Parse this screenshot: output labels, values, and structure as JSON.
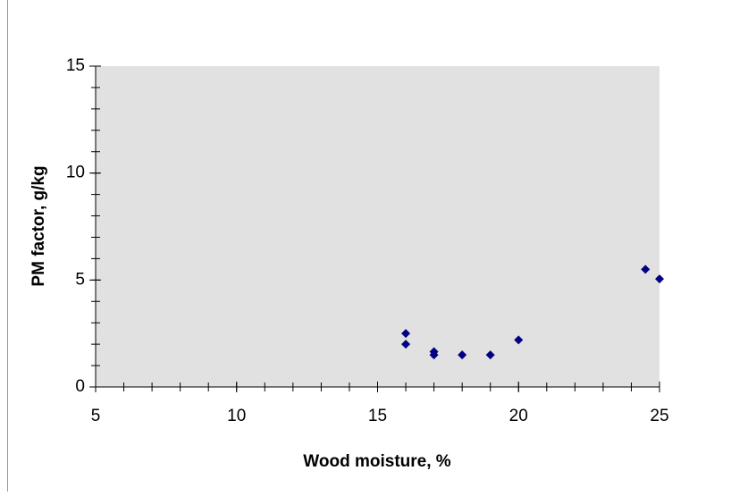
{
  "chart_data": {
    "type": "scatter",
    "x_label": "Wood moisture, %",
    "y_label": "PM factor, g/kg",
    "series": [
      {
        "color": "#000080",
        "x": [
          16,
          16,
          17,
          17,
          18,
          19,
          20,
          24.5,
          25
        ],
        "values": [
          2.5,
          2.0,
          1.65,
          1.5,
          1.5,
          1.5,
          2.2,
          5.5,
          5.05
        ]
      }
    ],
    "xlim": [
      5,
      25
    ],
    "xticks": [
      5,
      10,
      15,
      20,
      25
    ],
    "ylim": [
      0,
      15
    ],
    "yticks": [
      0,
      5,
      10,
      15
    ],
    "minor_step": {
      "x": 1,
      "y": 1
    },
    "plot_background": "#e1e1e1"
  }
}
